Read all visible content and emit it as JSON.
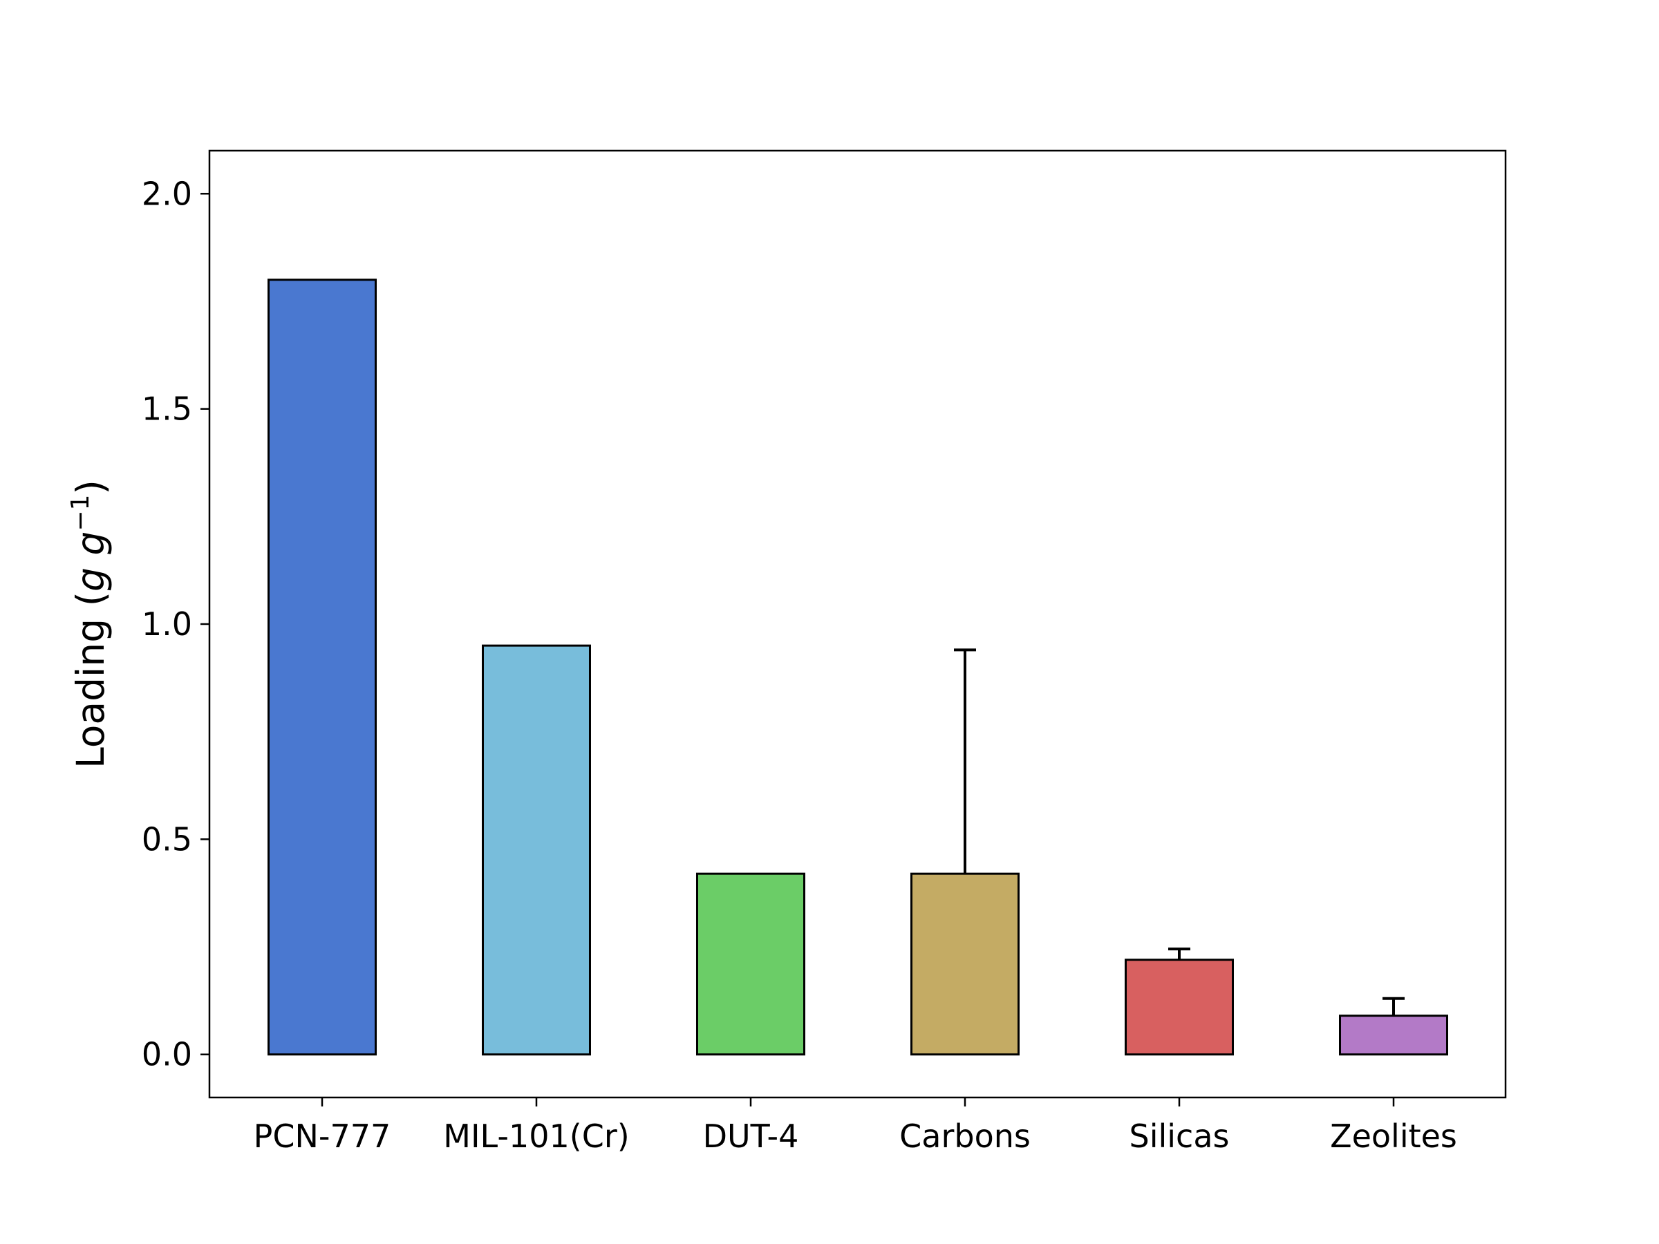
{
  "chart_data": {
    "type": "bar",
    "title": "",
    "xlabel": "",
    "ylabel": "Loading (",
    "ylabel_unit_base": "g g",
    "ylabel_unit_exp": "−1",
    "ylabel_close": ")",
    "categories": [
      "PCN-777",
      "MIL-101(Cr)",
      "DUT-4",
      "Carbons",
      "Silicas",
      "Zeolites"
    ],
    "values": [
      1.8,
      0.95,
      0.42,
      0.42,
      0.22,
      0.09
    ],
    "error_upper": [
      null,
      null,
      null,
      0.94,
      0.245,
      0.13
    ],
    "colors": [
      "#4a78d0",
      "#78bddb",
      "#6bcd67",
      "#c4ab64",
      "#d86060",
      "#b37ac7"
    ],
    "ylim": [
      -0.1,
      2.1
    ],
    "yticks": [
      0.0,
      0.5,
      1.0,
      1.5,
      2.0
    ],
    "ytick_labels": [
      "0.0",
      "0.5",
      "1.0",
      "1.5",
      "2.0"
    ],
    "grid": false,
    "legend": "none"
  }
}
